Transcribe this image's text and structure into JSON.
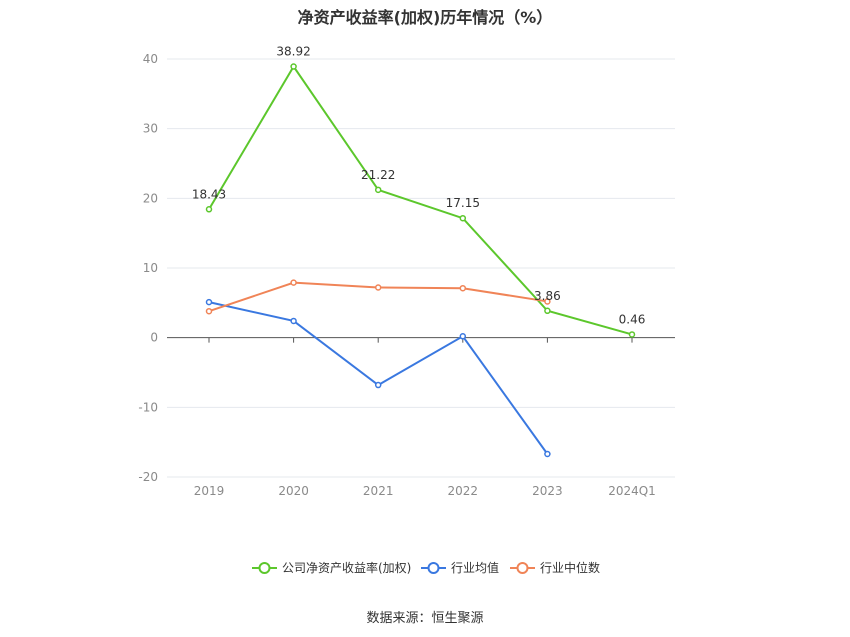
{
  "chart_data": {
    "type": "line",
    "title": "净资产收益率(加权)历年情况（%）",
    "categories": [
      "2019",
      "2020",
      "2021",
      "2022",
      "2023",
      "2024Q1"
    ],
    "ylim": [
      -20,
      40
    ],
    "yticks": [
      -20,
      -10,
      0,
      10,
      20,
      30,
      40
    ],
    "grid": true,
    "legend_position": "bottom",
    "source": "数据来源：恒生聚源",
    "series": [
      {
        "name": "公司净资产收益率(加权)",
        "color": "#5cc72c",
        "values": [
          18.43,
          38.92,
          21.22,
          17.15,
          3.86,
          0.46
        ],
        "labels": true
      },
      {
        "name": "行业均值",
        "color": "#3a78e0",
        "values": [
          5.1,
          2.4,
          -6.8,
          0.2,
          -16.7,
          null
        ],
        "labels": false
      },
      {
        "name": "行业中位数",
        "color": "#f08457",
        "values": [
          3.8,
          7.9,
          7.2,
          7.1,
          5.2,
          null
        ],
        "labels": false
      }
    ]
  }
}
